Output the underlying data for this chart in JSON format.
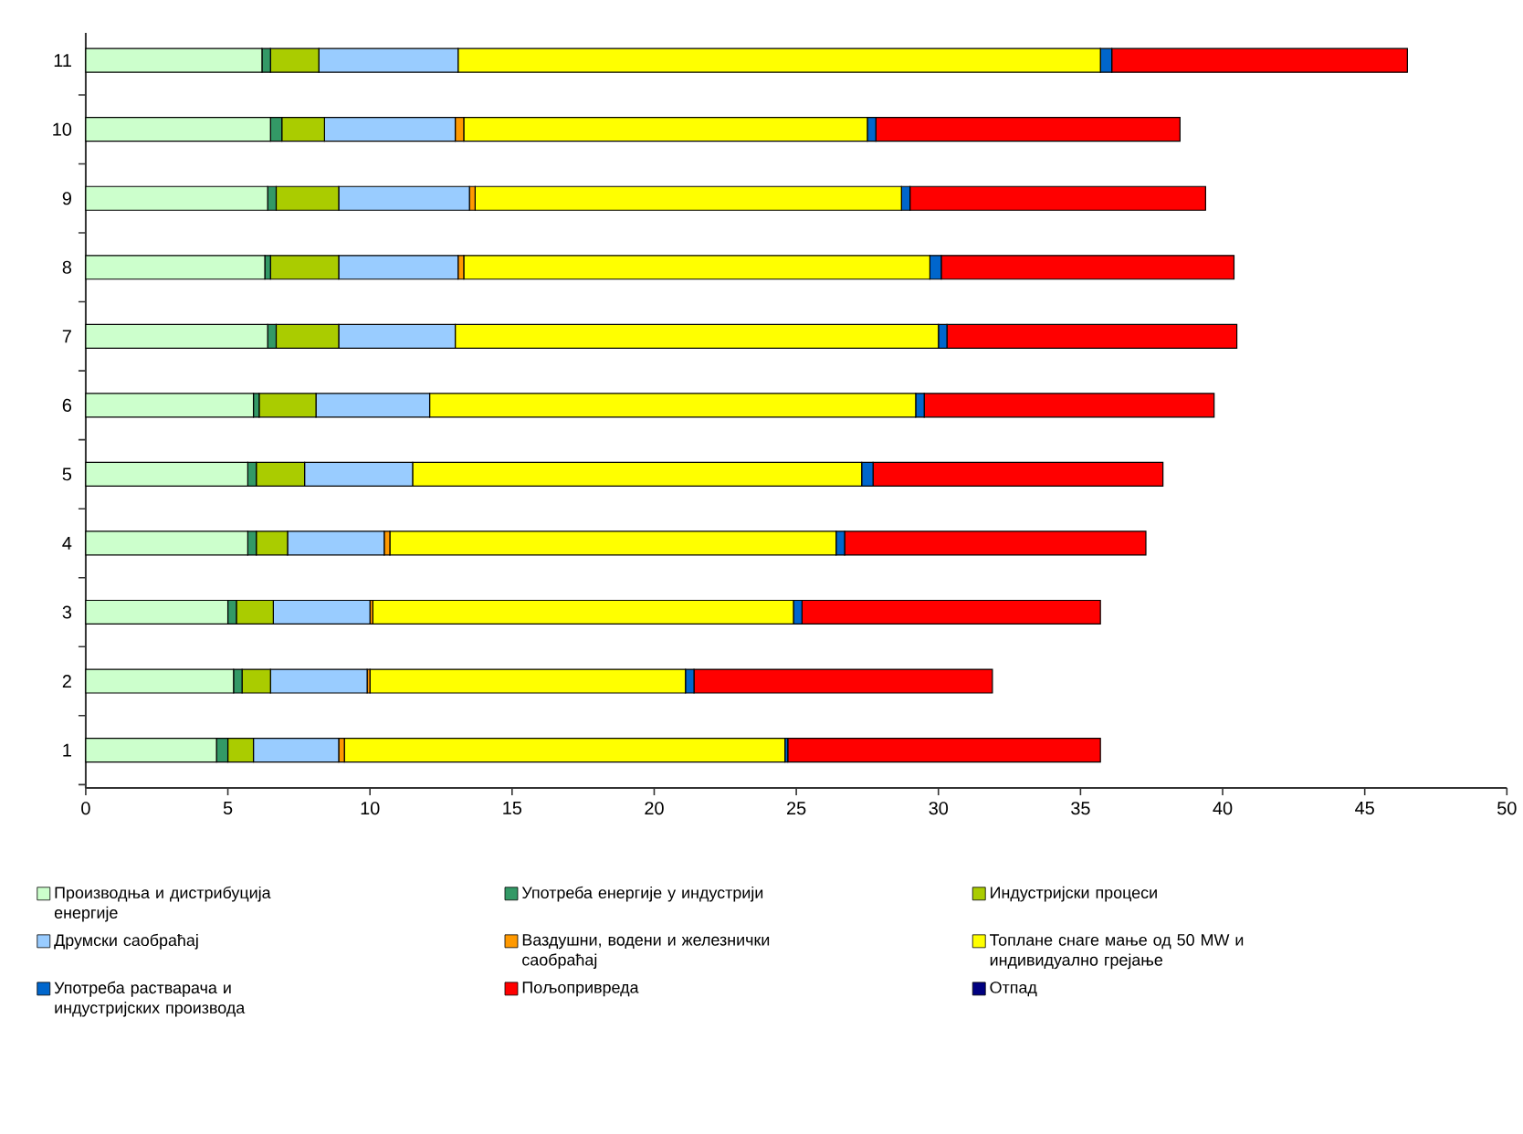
{
  "chart_data": {
    "type": "bar",
    "orientation": "horizontal",
    "stacked": true,
    "categories": [
      "11",
      "10",
      "9",
      "8",
      "7",
      "6",
      "5",
      "4",
      "3",
      "2",
      "1"
    ],
    "xlim": [
      0,
      50
    ],
    "xticks": [
      0,
      5,
      10,
      15,
      20,
      25,
      30,
      35,
      40,
      45,
      50
    ],
    "legend": "bottom",
    "series": [
      {
        "name": "Производња и дистрибуција енергије",
        "color": "#ccffcc",
        "values": [
          6.2,
          6.5,
          6.4,
          6.3,
          6.4,
          5.9,
          5.7,
          5.7,
          5.0,
          5.2,
          4.6
        ]
      },
      {
        "name": "Употреба енергије у индустрији",
        "color": "#339966",
        "values": [
          0.3,
          0.4,
          0.3,
          0.2,
          0.3,
          0.2,
          0.3,
          0.3,
          0.3,
          0.3,
          0.4
        ]
      },
      {
        "name": "Индустријски процеси",
        "color": "#aacc00",
        "values": [
          1.7,
          1.5,
          2.2,
          2.4,
          2.2,
          2.0,
          1.7,
          1.1,
          1.3,
          1.0,
          0.9
        ]
      },
      {
        "name": "Друмски саобраћај",
        "color": "#99ccff",
        "values": [
          4.9,
          4.6,
          4.6,
          4.2,
          4.1,
          4.0,
          3.8,
          3.4,
          3.4,
          3.4,
          3.0
        ]
      },
      {
        "name": "Ваздушни, водени и железнички саобраћај",
        "color": "#ff9900",
        "values": [
          0,
          0.3,
          0.2,
          0.2,
          0,
          0,
          0,
          0.2,
          0.1,
          0.1,
          0.2
        ]
      },
      {
        "name": "Топлане снаге мање од 50 MW и индивидуално грејање",
        "color": "#ffff00",
        "values": [
          22.6,
          14.2,
          15.0,
          16.4,
          17.0,
          17.1,
          15.8,
          15.7,
          14.8,
          11.1,
          15.5
        ]
      },
      {
        "name": "Употреба растварача и индустријских производа",
        "color": "#0066cc",
        "values": [
          0.4,
          0.3,
          0.3,
          0.4,
          0.3,
          0.3,
          0.4,
          0.3,
          0.3,
          0.3,
          0.1
        ]
      },
      {
        "name": "Пољопривреда",
        "color": "#ff0000",
        "values": [
          10.4,
          10.7,
          10.4,
          10.3,
          10.2,
          10.2,
          10.2,
          10.6,
          10.5,
          10.5,
          11.0
        ]
      },
      {
        "name": "Отпад",
        "color": "#000080",
        "values": [
          0,
          0,
          0,
          0,
          0,
          0,
          0,
          0,
          0,
          0,
          0
        ]
      }
    ]
  }
}
